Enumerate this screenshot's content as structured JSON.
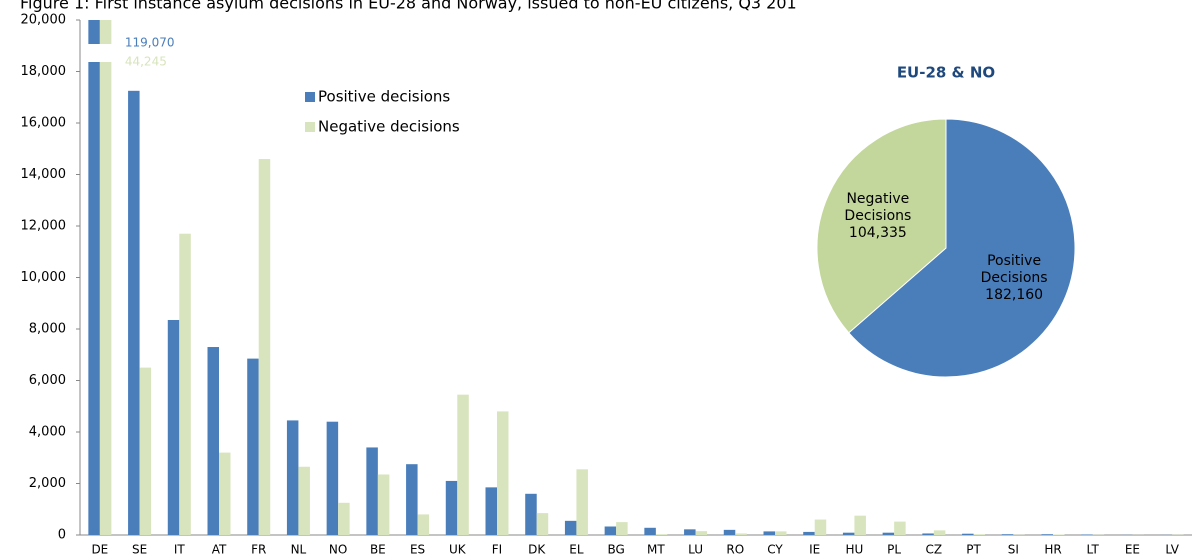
{
  "chart_data": [
    {
      "type": "bar",
      "title": "Figure 1: First instance asylum decisions in EU-28 and Norway, issued to non-EU citizens, Q3 201",
      "categories": [
        "DE",
        "SE",
        "IT",
        "AT",
        "FR",
        "NL",
        "NO",
        "BE",
        "ES",
        "UK",
        "FI",
        "DK",
        "EL",
        "BG",
        "MT",
        "LU",
        "RO",
        "CY",
        "IE",
        "HU",
        "PL",
        "CZ",
        "PT",
        "SI",
        "HR",
        "LT",
        "EE",
        "LV"
      ],
      "series": [
        {
          "name": "Positive decisions",
          "color": "#4a7ebb",
          "values": [
            119070,
            17250,
            8350,
            7300,
            6850,
            4450,
            4400,
            3400,
            2750,
            2100,
            1850,
            1600,
            550,
            330,
            280,
            220,
            200,
            140,
            120,
            90,
            90,
            60,
            50,
            30,
            30,
            20,
            5,
            5
          ],
          "value_labels": [
            "119,070",
            null,
            null,
            null,
            null,
            null,
            null,
            null,
            null,
            null,
            null,
            null,
            null,
            null,
            null,
            null,
            null,
            null,
            null,
            null,
            null,
            null,
            null,
            null,
            null,
            null,
            null,
            null
          ]
        },
        {
          "name": "Negative decisions",
          "color": "#d7e4bd",
          "values": [
            44245,
            6500,
            11700,
            3200,
            14600,
            2650,
            1250,
            2350,
            800,
            5450,
            4800,
            850,
            2550,
            500,
            30,
            150,
            60,
            140,
            600,
            750,
            520,
            180,
            30,
            10,
            20,
            10,
            5,
            10
          ],
          "value_labels": [
            "44,245",
            null,
            null,
            null,
            null,
            null,
            null,
            null,
            null,
            null,
            null,
            null,
            null,
            null,
            null,
            null,
            null,
            null,
            null,
            null,
            null,
            null,
            null,
            null,
            null,
            null,
            null,
            null
          ]
        }
      ],
      "ylim": [
        0,
        20000
      ],
      "yticks": [
        0,
        {
          "value": 2000,
          "label": "2,000"
        },
        {
          "value": 4000,
          "label": "4,000"
        },
        {
          "value": 6000,
          "label": "6,000"
        },
        {
          "value": 8000,
          "label": "8,000"
        },
        {
          "value": 10000,
          "label": "10,000"
        },
        {
          "value": 12000,
          "label": "12,000"
        },
        {
          "value": 14000,
          "label": "14,000"
        },
        {
          "value": 16000,
          "label": "16,000"
        },
        {
          "value": 18000,
          "label": "18,000"
        },
        {
          "value": 20000,
          "label": "20,000"
        }
      ],
      "legend": "upper center"
    },
    {
      "type": "pie",
      "title": "EU-28 & NO",
      "labels": [
        "Positive Decisions",
        "Negative Decisions"
      ],
      "values": [
        182160,
        104335
      ],
      "value_labels": [
        "182,160",
        "104,335"
      ],
      "colors": [
        "#4a7ebb",
        "#c3d69b"
      ]
    }
  ]
}
